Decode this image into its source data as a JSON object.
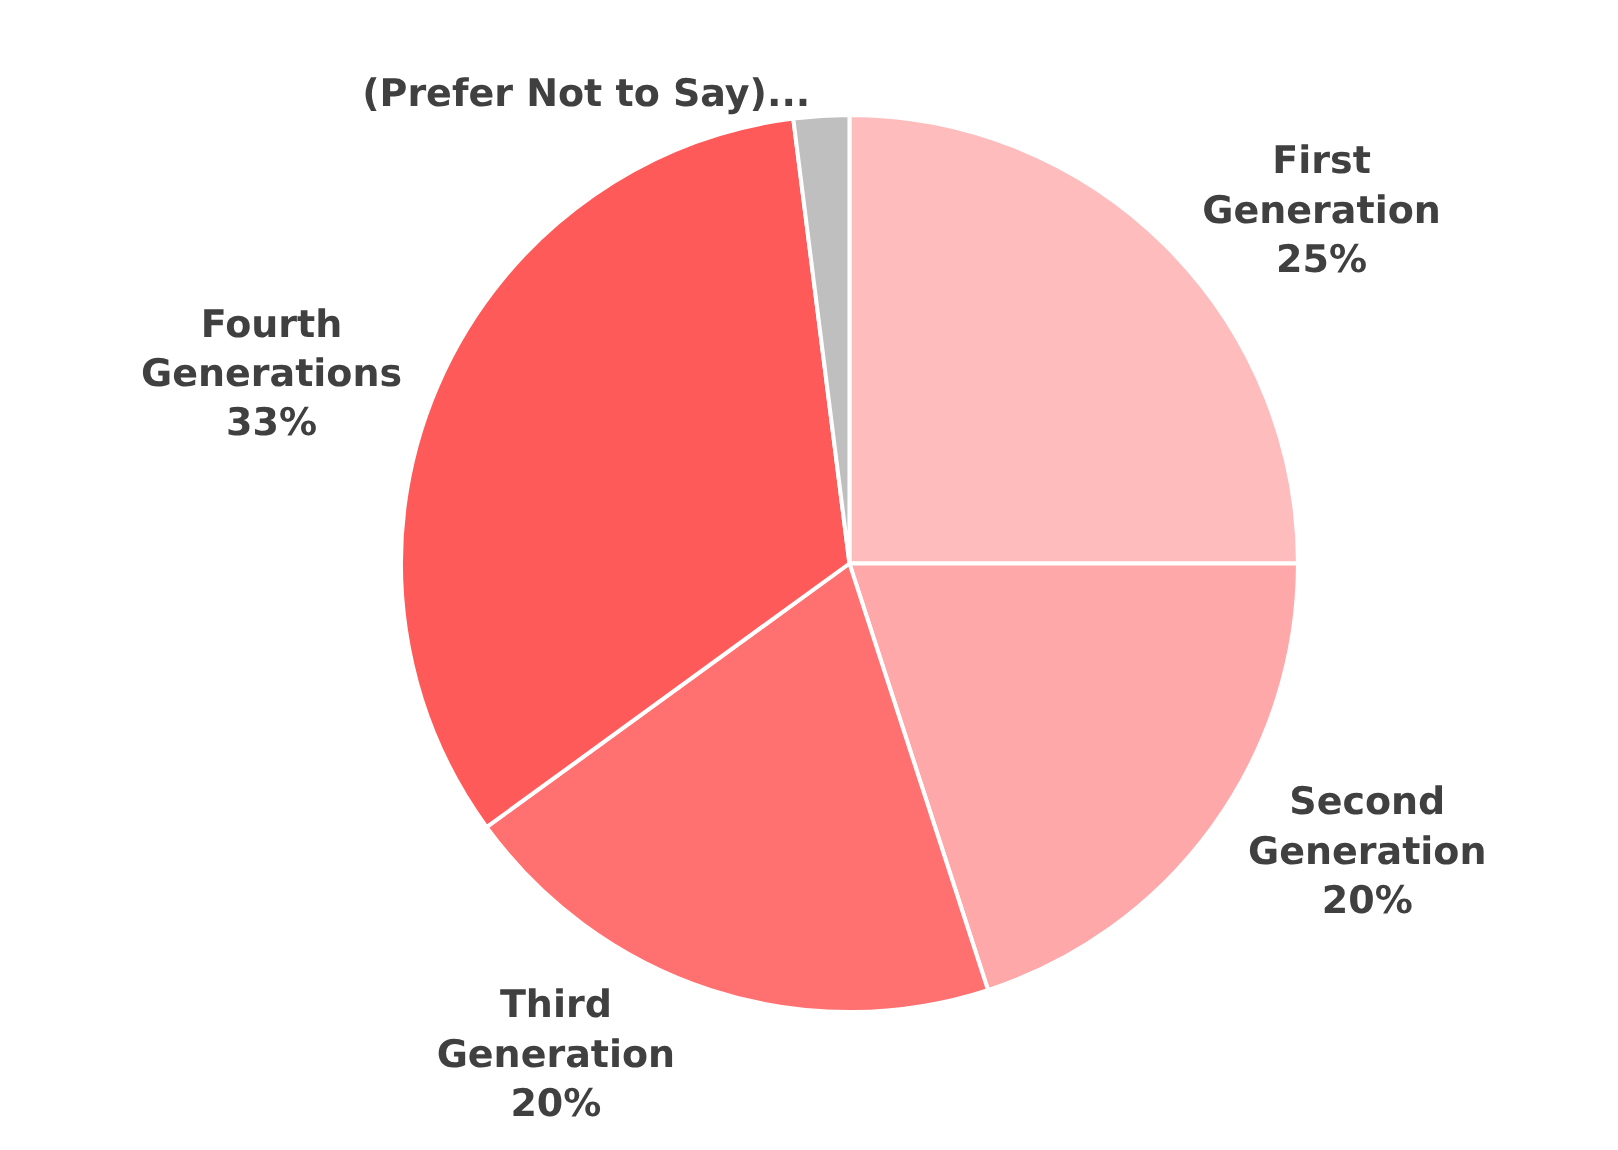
{
  "chart_data": {
    "type": "pie",
    "categories": [
      "First Generation",
      "Second Generation",
      "Third Generation",
      "Fourth Generations",
      "(Prefer Not to Say)..."
    ],
    "values": [
      25,
      20,
      20,
      33,
      2
    ],
    "value_labels": [
      "25%",
      "20%",
      "20%",
      "33%",
      null
    ],
    "colors": [
      "#ffbcbd",
      "#ffa8aa",
      "#ff7070",
      "#ff5a5a",
      "#bfbfbf"
    ],
    "legend": false
  }
}
